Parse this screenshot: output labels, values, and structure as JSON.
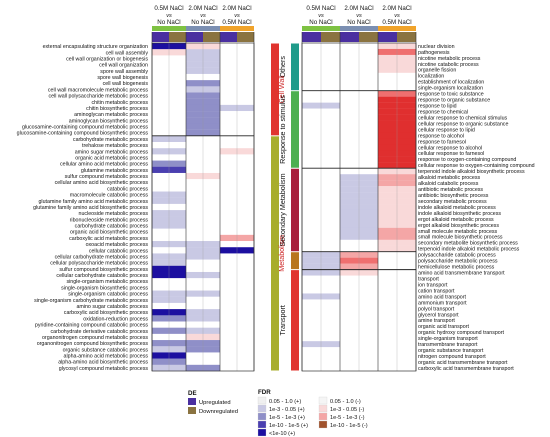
{
  "chart_data": [
    {
      "type": "heatmap",
      "panel": "left",
      "column_headers": [
        {
          "top": "0.5M NaCl",
          "mid": "vs",
          "bottom": "No NaCl"
        },
        {
          "top": "2.0M NaCl",
          "mid": "vs",
          "bottom": "No NaCl"
        },
        {
          "top": "2.0M NaCl",
          "mid": "vs",
          "bottom": "0.5M NaCl"
        }
      ],
      "column_colors": [
        "#7ec242",
        "#7b8fb2",
        "#f0a32a"
      ],
      "groups": [
        {
          "name": "Cell Wall",
          "color": "#e0342f",
          "rows": [
            "external encapsulating structure organization",
            "cell wall assembly",
            "cell wall organization or biogenesis",
            "cell wall organization",
            "spore wall assembly",
            "spore wall biogenesis",
            "cell wall biogenesis",
            "cell wall macromolecule metabolic process",
            "cell wall polysaccharide metabolic process",
            "chitin metabolic process",
            "chitin biosynthetic process",
            "aminoglycan metabolic process",
            "aminoglycan biosynthetic process",
            "glucosamine-containing compound metabolic process",
            "glucosamine-containing compound biosynthetic process"
          ]
        },
        {
          "name": "Metabolism",
          "color": "#a8ad2c",
          "rows": [
            "carbohydrate metabolic process",
            "trehalose metabolic process",
            "amino sugar metabolic process",
            "organic acid metabolic process",
            "cellular amino acid metabolic process",
            "glutamine metabolic process",
            "sulfur compound metabolic process",
            "cellular amino acid biosynthetic process",
            "catabolic process",
            "macromolecule catabolic process",
            "glutamine family amino acid metabolic process",
            "glutamine family amino acid biosynthetic process",
            "nucleoside metabolic process",
            "ribonucleoside metabolic process",
            "carbohydrate catabolic process",
            "organic acid biosynthetic process",
            "carboxylic acid metabolic process",
            "oxoacid metabolic process",
            "cellular catabolic process",
            "cellular carbohydrate metabolic process",
            "cellular polysaccharide metabolic process",
            "sulfur compound biosynthetic process",
            "cellular carbohydrate catabolic process",
            "single-organism metabolic process",
            "single-organism biosynthetic process",
            "single-organism catabolic process",
            "single-organism carbohydrate metabolic process",
            "amino sugar catabolic process",
            "carboxylic acid biosynthetic process",
            "oxidation-reduction process",
            "pyridine-containing compound catabolic process",
            "carbohydrate derivative catabolic process",
            "organonitrogen compound metabolic process",
            "organonitrogen compound biosynthetic process",
            "organic substance catabolic process",
            "alpha-amino acid metabolic process",
            "alpha-amino acid biosynthetic process",
            "glycosyl compound metabolic process"
          ]
        }
      ],
      "cells": [
        [
          "u4",
          "d1",
          ""
        ],
        [
          "d1",
          "u1",
          ""
        ],
        [
          "",
          "u1",
          ""
        ],
        [
          "",
          "u1",
          ""
        ],
        [
          "",
          "u1",
          ""
        ],
        [
          "",
          "",
          ""
        ],
        [
          "",
          "u2",
          ""
        ],
        [
          "",
          "u1",
          ""
        ],
        [
          "",
          "u2",
          ""
        ],
        [
          "",
          "u2",
          ""
        ],
        [
          "",
          "u2",
          "u1"
        ],
        [
          "",
          "u2",
          ""
        ],
        [
          "",
          "u2",
          ""
        ],
        [
          "",
          "u2",
          ""
        ],
        [
          "",
          "u2",
          ""
        ],
        [
          "u1",
          "",
          ""
        ],
        [
          "",
          "",
          ""
        ],
        [
          "u1",
          "",
          "d1"
        ],
        [
          "",
          "",
          ""
        ],
        [
          "u2",
          "",
          ""
        ],
        [
          "u3",
          "",
          ""
        ],
        [
          "",
          "d1",
          ""
        ],
        [
          "",
          "",
          ""
        ],
        [
          "",
          "",
          ""
        ],
        [
          "u1",
          "",
          ""
        ],
        [
          "u1",
          "",
          ""
        ],
        [
          "",
          "",
          ""
        ],
        [
          "u1",
          "",
          ""
        ],
        [
          "u1",
          "",
          ""
        ],
        [
          "u1",
          "",
          ""
        ],
        [
          "",
          "",
          ""
        ],
        [
          "",
          "",
          "d2"
        ],
        [
          "u1",
          "u1",
          ""
        ],
        [
          "",
          "u1",
          "u4"
        ],
        [
          "u1",
          "u1",
          ""
        ],
        [
          "u1",
          "",
          ""
        ],
        [
          "u4",
          "",
          ""
        ],
        [
          "u4",
          "u1",
          ""
        ],
        [
          "",
          "",
          ""
        ],
        [
          "",
          "",
          ""
        ],
        [
          "u1",
          "u1",
          ""
        ],
        [
          "u1",
          "",
          ""
        ],
        [
          "",
          "",
          ""
        ],
        [
          "u4",
          "u1",
          ""
        ],
        [
          "u2",
          "u1",
          ""
        ],
        [
          "",
          "",
          ""
        ],
        [
          "u2",
          "u1",
          ""
        ],
        [
          "",
          "d1",
          ""
        ],
        [
          "u2",
          "u2",
          ""
        ],
        [
          "u1",
          "u2",
          ""
        ],
        [
          "u4",
          "",
          ""
        ],
        [
          "u2",
          "",
          ""
        ],
        [
          "u1",
          "u2",
          ""
        ]
      ]
    },
    {
      "type": "heatmap",
      "panel": "right",
      "column_headers": [
        {
          "top": "0.5M NaCl",
          "mid": "vs",
          "bottom": "No NaCl"
        },
        {
          "top": "2.0M NaCl",
          "mid": "vs",
          "bottom": "No NaCl"
        },
        {
          "top": "2.0M NaCl",
          "mid": "vs",
          "bottom": "0.5M NaCl"
        }
      ],
      "column_colors": [
        "#7ec242",
        "#7b8fb2",
        "#f0a32a"
      ],
      "groups": [
        {
          "name": "Others",
          "color": "#1f9b8a",
          "rows": [
            "nuclear division",
            "pathogenesis",
            "nicotine metabolic process",
            "nicotine catabolic process",
            "organelle fission",
            "localization",
            "establishment of localization",
            "single-organism localization"
          ]
        },
        {
          "name": "Response to stimulus",
          "color": "#4caf50",
          "rows": [
            "response to toxic substance",
            "response to organic substance",
            "response to lipid",
            "response to chemical",
            "cellular response to chemical stimulus",
            "cellular response to organic substance",
            "cellular response to lipid",
            "response to alcohol",
            "response to farnesol",
            "cellular response to alcohol",
            "cellular response to farnesol",
            "response to oxygen-containing compound",
            "cellular response to oxygen-containing compound"
          ]
        },
        {
          "name": "Secondary Metabolism",
          "color": "#a8203c",
          "rows": [
            "terpenoid indole alkaloid biosynthetic process",
            "alkaloid metabolic process",
            "alkaloid catabolic process",
            "antibiotic metabolic process",
            "antibiotic biosynthetic process",
            "secondary metabolic process",
            "indole alkaloid metabolic process",
            "indole alkaloid biosynthetic process",
            "ergot alkaloid metabolic process",
            "ergot alkaloid biosynthetic process",
            "small molecule metabolic process",
            "small molecule biosynthetic process",
            "secondary metabolite biosynthetic process",
            "terpenoid indole alkaloid metabolic process"
          ]
        },
        {
          "name": "",
          "color": "#b8761e",
          "rows": [
            "polysaccharide catabolic process",
            "polysaccharide metabolic process",
            "hemicellulose metabolic process"
          ]
        },
        {
          "name": "Transport",
          "color": "#e0342f",
          "rows": [
            "amino acid transmembrane transport",
            "transport",
            "ion transport",
            "cation transport",
            "amino acid transport",
            "ammonium transport",
            "polyol transport",
            "glycerol transport",
            "amine transport",
            "organic acid transport",
            "organic hydroxy compound transport",
            "single-organism transport",
            "transmembrane transport",
            "organic substance transport",
            "nitrogen compound transport",
            "organic acid transmembrane transport",
            "carboxylic acid transmembrane transport"
          ]
        }
      ],
      "cells": [
        [
          "",
          "",
          "d1"
        ],
        [
          "",
          "",
          "d3"
        ],
        [
          "",
          "",
          "d1"
        ],
        [
          "",
          "",
          "d1"
        ],
        [
          "",
          "",
          "d1"
        ],
        [
          "",
          "",
          ""
        ],
        [
          "",
          "",
          ""
        ],
        [
          "",
          "",
          ""
        ],
        [
          "",
          "",
          "d3"
        ],
        [
          "",
          "",
          "d4"
        ],
        [
          "u1",
          "",
          "d4"
        ],
        [
          "",
          "",
          "d4"
        ],
        [
          "",
          "",
          "d4"
        ],
        [
          "",
          "",
          "d4"
        ],
        [
          "",
          "",
          "d4"
        ],
        [
          "",
          "",
          "d4"
        ],
        [
          "",
          "",
          "d4"
        ],
        [
          "",
          "",
          "d4"
        ],
        [
          "",
          "",
          "d4"
        ],
        [
          "",
          "",
          "d4"
        ],
        [
          "",
          "",
          "d4"
        ],
        [
          "",
          "",
          "d1"
        ],
        [
          "",
          "u1",
          "d2"
        ],
        [
          "",
          "u1",
          "d2"
        ],
        [
          "",
          "u1",
          "d1"
        ],
        [
          "",
          "u1",
          "d1"
        ],
        [
          "",
          "u1",
          "d1"
        ],
        [
          "",
          "u1",
          "d1"
        ],
        [
          "",
          "u1",
          "d1"
        ],
        [
          "",
          "u1",
          "d1"
        ],
        [
          "",
          "u1",
          "d1"
        ],
        [
          "",
          "u1",
          "d2"
        ],
        [
          "",
          "u1",
          "d2"
        ],
        [
          "",
          "",
          "d1"
        ],
        [
          "",
          "",
          "d1"
        ],
        [
          "u1",
          "d2",
          ""
        ],
        [
          "u1",
          "d3",
          ""
        ],
        [
          "u1",
          "d2",
          ""
        ],
        [
          "u1",
          "d1",
          ""
        ],
        [
          "",
          "",
          ""
        ],
        [
          "",
          "",
          ""
        ],
        [
          "",
          "",
          ""
        ],
        [
          "u1",
          "",
          ""
        ],
        [
          "",
          "",
          ""
        ],
        [
          "",
          "",
          ""
        ],
        [
          "",
          "",
          ""
        ],
        [
          "",
          "",
          ""
        ],
        [
          "",
          "",
          ""
        ],
        [
          "",
          "",
          ""
        ],
        [
          "",
          "",
          ""
        ],
        [
          "u1",
          "",
          ""
        ],
        [
          "",
          "",
          ""
        ],
        [
          "",
          "",
          ""
        ],
        [
          "",
          "",
          ""
        ],
        [
          "",
          "",
          ""
        ]
      ]
    }
  ],
  "legend": {
    "de_title": "DE",
    "de_items": [
      {
        "label": "Upregulated",
        "color": "#4a2fa0"
      },
      {
        "label": "Downregulated",
        "color": "#8a7340"
      }
    ],
    "fdr_title": "FDR",
    "fdr_up": [
      {
        "label": "0.05 - 1.0 (+)",
        "color": "#f0f0f0"
      },
      {
        "label": "1e-3 - 0.05 (+)",
        "color": "#c9c9e4"
      },
      {
        "label": "1e-5 - 1e-3 (+)",
        "color": "#8f8fc8"
      },
      {
        "label": "1e-10 - 1e-5 (+)",
        "color": "#4a3fb0"
      },
      {
        "label": "<1e-10 (+)",
        "color": "#1c0fa0"
      }
    ],
    "fdr_down": [
      {
        "label": "0.05 - 1.0 (-)",
        "color": "#f5f5f5"
      },
      {
        "label": "1e-3 - 0.05 (-)",
        "color": "#f9d9d9"
      },
      {
        "label": "1e-5 - 1e-3 (-)",
        "color": "#f4a6a6"
      },
      {
        "label": "1e-10 - 1e-5 (-)",
        "color": "#a0522d"
      }
    ]
  }
}
